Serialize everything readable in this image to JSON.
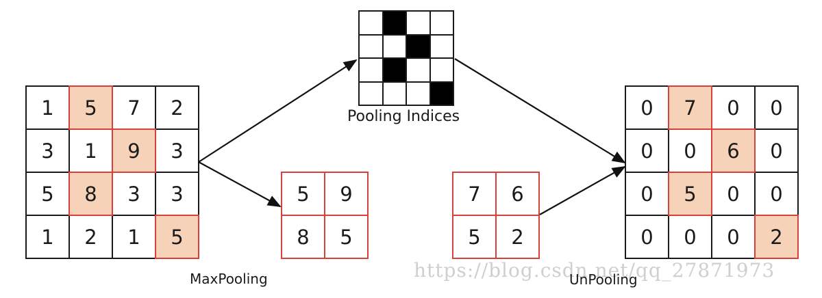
{
  "input_matrix": {
    "values": [
      [
        "1",
        "5",
        "7",
        "2"
      ],
      [
        "3",
        "1",
        "9",
        "3"
      ],
      [
        "5",
        "8",
        "3",
        "3"
      ],
      [
        "1",
        "2",
        "1",
        "5"
      ]
    ],
    "highlight": [
      [
        0,
        1
      ],
      [
        1,
        2
      ],
      [
        2,
        1
      ],
      [
        3,
        3
      ]
    ]
  },
  "pooled_matrix": {
    "values": [
      [
        "5",
        "9"
      ],
      [
        "8",
        "5"
      ]
    ]
  },
  "pooling_indices": {
    "label": "Pooling Indices",
    "filled": [
      [
        0,
        1
      ],
      [
        1,
        2
      ],
      [
        2,
        1
      ],
      [
        3,
        3
      ]
    ]
  },
  "unpool_input": {
    "values": [
      [
        "7",
        "6"
      ],
      [
        "5",
        "2"
      ]
    ]
  },
  "unpooled_matrix": {
    "values": [
      [
        "0",
        "7",
        "0",
        "0"
      ],
      [
        "0",
        "0",
        "6",
        "0"
      ],
      [
        "0",
        "5",
        "0",
        "0"
      ],
      [
        "0",
        "0",
        "0",
        "2"
      ]
    ],
    "highlight": [
      [
        0,
        1
      ],
      [
        1,
        2
      ],
      [
        2,
        1
      ],
      [
        3,
        3
      ]
    ]
  },
  "labels": {
    "maxpooling": "MaxPooling",
    "unpooling": "UnPooling"
  },
  "watermark": "https://blog.csdn.net/qq_27871973",
  "colors": {
    "highlight_fill": "#f6d3b8",
    "highlight_border": "#d8413a",
    "index_fill": "#000000"
  }
}
